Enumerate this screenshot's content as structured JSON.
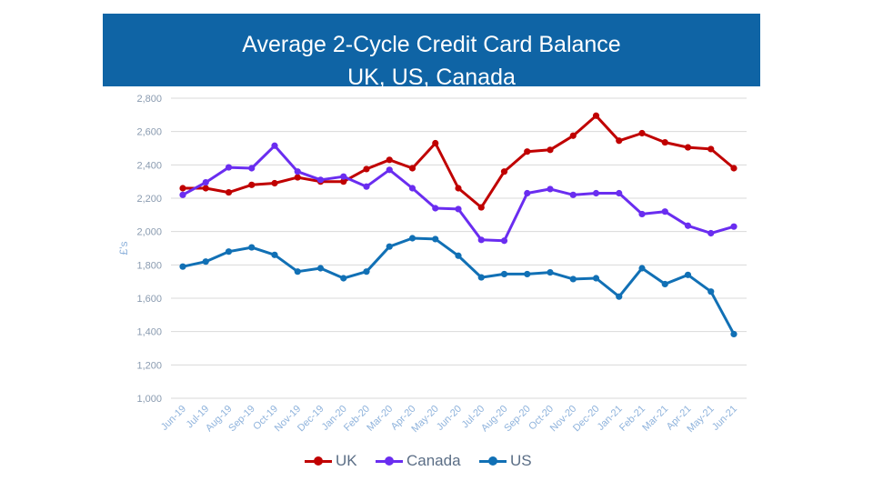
{
  "title": {
    "line1": "Average 2-Cycle Credit Card Balance",
    "line2": "UK, US, Canada"
  },
  "chart_data": {
    "type": "line",
    "ylabel": "£'s",
    "ylim": [
      1000,
      2800
    ],
    "yticks": [
      1000,
      1200,
      1400,
      1600,
      1800,
      2000,
      2200,
      2400,
      2600,
      2800
    ],
    "ytick_labels": [
      "1,000",
      "1,200",
      "1,400",
      "1,600",
      "1,800",
      "2,000",
      "2,200",
      "2,400",
      "2,600",
      "2,800"
    ],
    "grid": true,
    "legend_position": "bottom",
    "categories": [
      "Jun-19",
      "Jul-19",
      "Aug-19",
      "Sep-19",
      "Oct-19",
      "Nov-19",
      "Dec-19",
      "Jan-20",
      "Feb-20",
      "Mar-20",
      "Apr-20",
      "May-20",
      "Jun-20",
      "Jul-20",
      "Aug-20",
      "Sep-20",
      "Oct-20",
      "Nov-20",
      "Dec-20",
      "Jan-21",
      "Feb-21",
      "Mar-21",
      "Apr-21",
      "May-21",
      "Jun-21"
    ],
    "series": [
      {
        "name": "UK",
        "color": "#c00000",
        "values": [
          2260,
          2260,
          2235,
          2280,
          2290,
          2325,
          2300,
          2300,
          2375,
          2430,
          2380,
          2530,
          2260,
          2145,
          2360,
          2480,
          2490,
          2575,
          2695,
          2545,
          2590,
          2535,
          2505,
          2495,
          2380
        ]
      },
      {
        "name": "Canada",
        "color": "#6a2df0",
        "values": [
          2220,
          2295,
          2385,
          2380,
          2515,
          2360,
          2310,
          2330,
          2270,
          2370,
          2260,
          2140,
          2135,
          1950,
          1945,
          2230,
          2255,
          2220,
          2230,
          2230,
          2105,
          2120,
          2035,
          1990,
          2030
        ]
      },
      {
        "name": "US",
        "color": "#1170b5",
        "values": [
          1790,
          1820,
          1880,
          1905,
          1860,
          1760,
          1780,
          1720,
          1760,
          1910,
          1960,
          1955,
          1855,
          1725,
          1745,
          1745,
          1755,
          1715,
          1720,
          1610,
          1780,
          1685,
          1740,
          1640,
          1385
        ]
      }
    ]
  }
}
